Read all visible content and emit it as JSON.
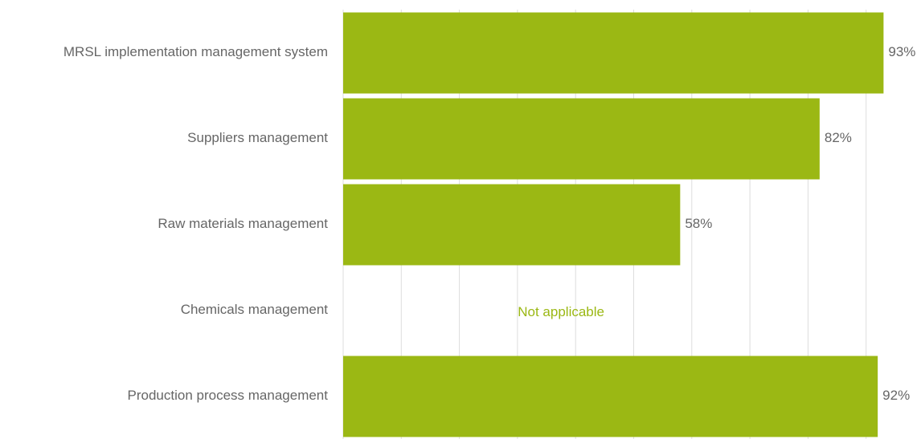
{
  "chart_data": {
    "type": "barh",
    "categories": [
      "MRSL implementation management system",
      "Suppliers management",
      "Raw materials management",
      "Chemicals management",
      "Production process management"
    ],
    "values": [
      93,
      82,
      58,
      null,
      92
    ],
    "value_labels": [
      "93%",
      "82%",
      "58%",
      null,
      "92%"
    ],
    "annotation": "Not applicable",
    "color": "#9bb814",
    "xlim": [
      0,
      100
    ],
    "xticks": [
      0,
      10,
      20,
      30,
      40,
      50,
      60,
      70,
      80,
      90
    ],
    "grid": true,
    "tick_labels": false
  }
}
